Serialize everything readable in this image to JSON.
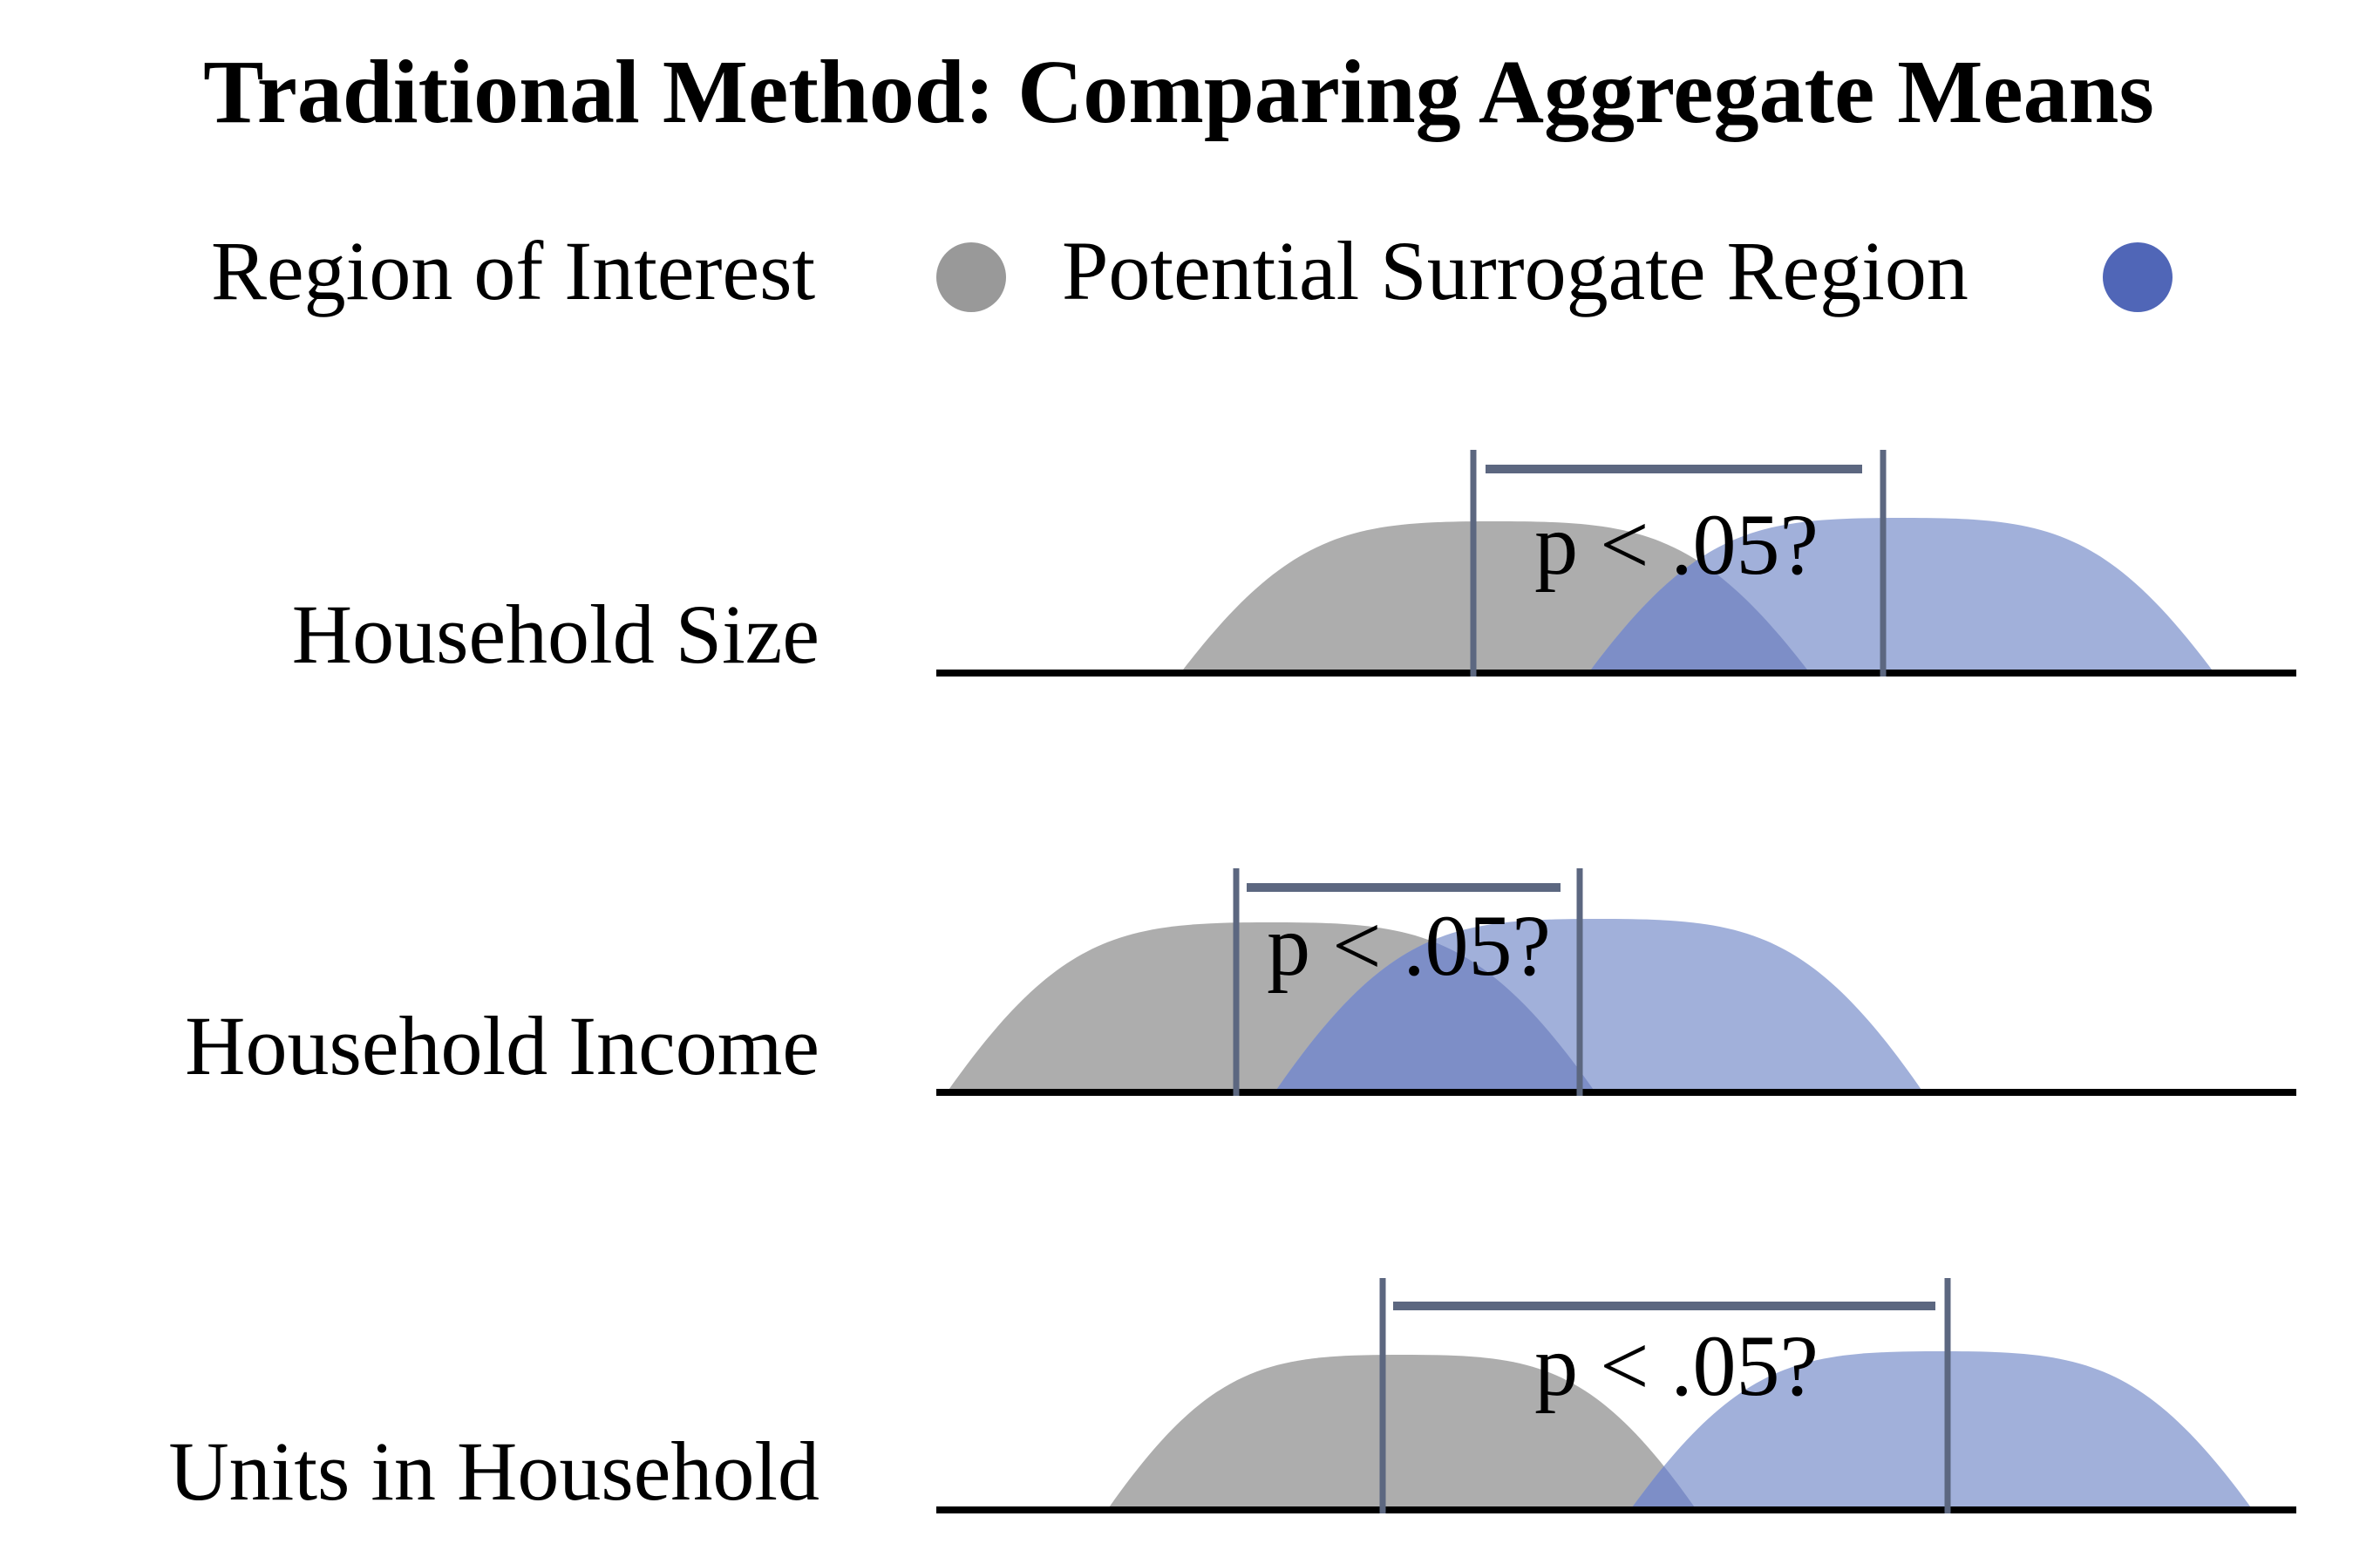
{
  "title": "Traditional Method: Comparing Aggregate Means",
  "legend": {
    "items": [
      {
        "label": "Region of Interest",
        "color": "#999999"
      },
      {
        "label": "Potential Surrogate Region",
        "color": "#5066b7"
      }
    ]
  },
  "colors": {
    "region_of_interest_fill": "#adadad",
    "surrogate_fill": "#a1b0da",
    "overlap_fill": "#7d8ec7",
    "bracket": "#5c6780",
    "axis": "#000000"
  },
  "rows": [
    {
      "label": "Household Size",
      "annotation": "p < .05?"
    },
    {
      "label": "Household Income",
      "annotation": "p < .05?"
    },
    {
      "label": "Units in Household",
      "annotation": "p < .05?"
    }
  ]
}
